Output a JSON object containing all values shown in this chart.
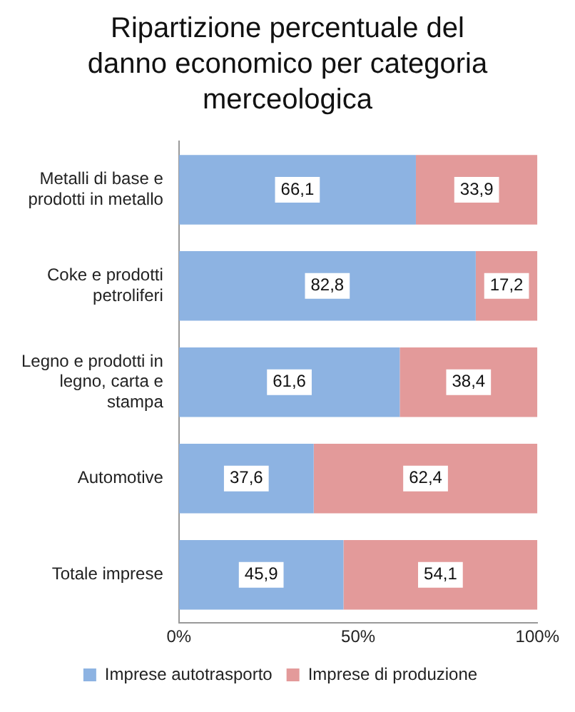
{
  "chart_data": {
    "type": "bar",
    "orientation": "horizontal",
    "stacked": true,
    "title": "Ripartizione percentuale del danno economico per categoria merceologica",
    "categories": [
      "Metalli di base e prodotti in metallo",
      "Coke e prodotti petroliferi",
      "Legno e prodotti in legno, carta e stampa",
      "Automotive",
      "Totale imprese"
    ],
    "series": [
      {
        "name": "Imprese autotrasporto",
        "color": "#8db3e2",
        "values": [
          66.1,
          82.8,
          61.6,
          37.6,
          45.9
        ],
        "value_labels": [
          "66,1",
          "82,8",
          "61,6",
          "37,6",
          "45,9"
        ]
      },
      {
        "name": "Imprese di produzione",
        "color": "#e39a9a",
        "values": [
          33.9,
          17.2,
          38.4,
          62.4,
          54.1
        ],
        "value_labels": [
          "33,9",
          "17,2",
          "38,4",
          "62,4",
          "54,1"
        ]
      }
    ],
    "xlim": [
      0,
      100
    ],
    "xticks": [
      {
        "value": 0,
        "label": "0%"
      },
      {
        "value": 50,
        "label": "50%"
      },
      {
        "value": 100,
        "label": "100%"
      }
    ],
    "grid": false,
    "legend": "bottom"
  }
}
